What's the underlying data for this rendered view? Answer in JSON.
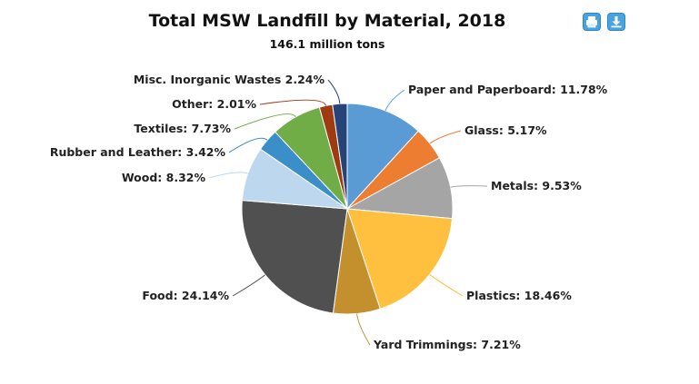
{
  "toolbar": {
    "print_icon": "printer-icon",
    "download_icon": "download-icon",
    "button_color": "#4aa3df"
  },
  "chart_data": {
    "type": "pie",
    "title": "Total MSW Landfill by Material, 2018",
    "subtitle": "146.1 million tons",
    "slices": [
      {
        "name": "Paper and Paperboard",
        "value": 11.78,
        "label": "Paper and Paperboard: 11.78%",
        "color": "#5b9bd5"
      },
      {
        "name": "Glass",
        "value": 5.17,
        "label": "Glass: 5.17%",
        "color": "#ed7d31"
      },
      {
        "name": "Metals",
        "value": 9.53,
        "label": "Metals: 9.53%",
        "color": "#a5a5a5"
      },
      {
        "name": "Plastics",
        "value": 18.46,
        "label": "Plastics: 18.46%",
        "color": "#ffc040"
      },
      {
        "name": "Yard Trimmings",
        "value": 7.21,
        "label": "Yard Trimmings: 7.21%",
        "color": "#c4902e"
      },
      {
        "name": "Food",
        "value": 24.14,
        "label": "Food: 24.14%",
        "color": "#505050"
      },
      {
        "name": "Wood",
        "value": 8.32,
        "label": "Wood: 8.32%",
        "color": "#bdd7ee"
      },
      {
        "name": "Rubber and Leather",
        "value": 3.42,
        "label": "Rubber and Leather: 3.42%",
        "color": "#3a8fc8"
      },
      {
        "name": "Textiles",
        "value": 7.73,
        "label": "Textiles: 7.73%",
        "color": "#70ad47"
      },
      {
        "name": "Other",
        "value": 2.01,
        "label": "Other: 2.01%",
        "color": "#9e3b12"
      },
      {
        "name": "Misc. Inorganic Wastes",
        "value": 2.24,
        "label": "Misc. Inorganic Wastes 2.24%",
        "color": "#264478"
      }
    ]
  }
}
